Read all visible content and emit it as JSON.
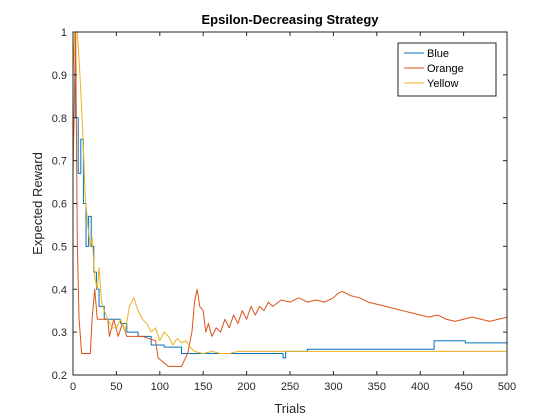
{
  "chart_data": {
    "type": "line",
    "title": "Epsilon-Decreasing Strategy",
    "xlabel": "Trials",
    "ylabel": "Expected Reward",
    "xlim": [
      0,
      500
    ],
    "ylim": [
      0.2,
      1
    ],
    "xticks": [
      0,
      50,
      100,
      150,
      200,
      250,
      300,
      350,
      400,
      450,
      500
    ],
    "yticks": [
      0.2,
      0.3,
      0.4,
      0.5,
      0.6,
      0.7,
      0.8,
      0.9,
      1
    ],
    "grid": false,
    "legend_position": "top-right",
    "series": [
      {
        "name": "Blue",
        "color": "#0072BD",
        "step": true,
        "points": [
          [
            0,
            1
          ],
          [
            3,
            0.8
          ],
          [
            6,
            0.67
          ],
          [
            9,
            0.75
          ],
          [
            12,
            0.6
          ],
          [
            15,
            0.5
          ],
          [
            18,
            0.57
          ],
          [
            21,
            0.5
          ],
          [
            24,
            0.44
          ],
          [
            27,
            0.4
          ],
          [
            30,
            0.36
          ],
          [
            36,
            0.33
          ],
          [
            55,
            0.32
          ],
          [
            62,
            0.3
          ],
          [
            75,
            0.29
          ],
          [
            90,
            0.27
          ],
          [
            105,
            0.265
          ],
          [
            125,
            0.25
          ],
          [
            240,
            0.25
          ],
          [
            242,
            0.24
          ],
          [
            245,
            0.255
          ],
          [
            270,
            0.26
          ],
          [
            415,
            0.26
          ],
          [
            416,
            0.28
          ],
          [
            450,
            0.28
          ],
          [
            452,
            0.275
          ],
          [
            500,
            0.275
          ]
        ]
      },
      {
        "name": "Orange",
        "color": "#D95319",
        "step": false,
        "points": [
          [
            0,
            0.67
          ],
          [
            3,
            1
          ],
          [
            5,
            0.5
          ],
          [
            7,
            0.33
          ],
          [
            10,
            0.25
          ],
          [
            14,
            0.25
          ],
          [
            20,
            0.25
          ],
          [
            22,
            0.33
          ],
          [
            25,
            0.4
          ],
          [
            28,
            0.33
          ],
          [
            32,
            0.33
          ],
          [
            40,
            0.33
          ],
          [
            42,
            0.29
          ],
          [
            47,
            0.33
          ],
          [
            52,
            0.29
          ],
          [
            57,
            0.32
          ],
          [
            62,
            0.29
          ],
          [
            70,
            0.29
          ],
          [
            80,
            0.29
          ],
          [
            95,
            0.28
          ],
          [
            98,
            0.24
          ],
          [
            110,
            0.22
          ],
          [
            125,
            0.22
          ],
          [
            132,
            0.25
          ],
          [
            137,
            0.3
          ],
          [
            140,
            0.37
          ],
          [
            143,
            0.4
          ],
          [
            146,
            0.36
          ],
          [
            150,
            0.35
          ],
          [
            153,
            0.3
          ],
          [
            156,
            0.32
          ],
          [
            160,
            0.29
          ],
          [
            165,
            0.31
          ],
          [
            170,
            0.3
          ],
          [
            175,
            0.33
          ],
          [
            180,
            0.31
          ],
          [
            185,
            0.34
          ],
          [
            190,
            0.32
          ],
          [
            195,
            0.35
          ],
          [
            200,
            0.33
          ],
          [
            205,
            0.36
          ],
          [
            210,
            0.34
          ],
          [
            215,
            0.36
          ],
          [
            220,
            0.35
          ],
          [
            225,
            0.37
          ],
          [
            230,
            0.36
          ],
          [
            240,
            0.375
          ],
          [
            250,
            0.37
          ],
          [
            260,
            0.38
          ],
          [
            270,
            0.37
          ],
          [
            280,
            0.375
          ],
          [
            290,
            0.37
          ],
          [
            300,
            0.38
          ],
          [
            305,
            0.39
          ],
          [
            310,
            0.395
          ],
          [
            320,
            0.385
          ],
          [
            330,
            0.38
          ],
          [
            340,
            0.37
          ],
          [
            350,
            0.365
          ],
          [
            360,
            0.36
          ],
          [
            370,
            0.355
          ],
          [
            380,
            0.35
          ],
          [
            390,
            0.345
          ],
          [
            400,
            0.34
          ],
          [
            410,
            0.335
          ],
          [
            420,
            0.34
          ],
          [
            430,
            0.33
          ],
          [
            440,
            0.325
          ],
          [
            450,
            0.33
          ],
          [
            460,
            0.335
          ],
          [
            470,
            0.33
          ],
          [
            480,
            0.325
          ],
          [
            490,
            0.33
          ],
          [
            500,
            0.335
          ]
        ]
      },
      {
        "name": "Yellow",
        "color": "#EDB120",
        "step": false,
        "points": [
          [
            0,
            0.9
          ],
          [
            2,
            1
          ],
          [
            5,
            1
          ],
          [
            8,
            0.9
          ],
          [
            11,
            0.78
          ],
          [
            14,
            0.62
          ],
          [
            17,
            0.55
          ],
          [
            20,
            0.5
          ],
          [
            22,
            0.52
          ],
          [
            25,
            0.43
          ],
          [
            28,
            0.4
          ],
          [
            30,
            0.45
          ],
          [
            33,
            0.37
          ],
          [
            36,
            0.35
          ],
          [
            40,
            0.33
          ],
          [
            45,
            0.31
          ],
          [
            50,
            0.31
          ],
          [
            55,
            0.33
          ],
          [
            60,
            0.3
          ],
          [
            65,
            0.36
          ],
          [
            70,
            0.38
          ],
          [
            75,
            0.35
          ],
          [
            80,
            0.33
          ],
          [
            85,
            0.32
          ],
          [
            90,
            0.3
          ],
          [
            95,
            0.31
          ],
          [
            100,
            0.28
          ],
          [
            105,
            0.3
          ],
          [
            110,
            0.29
          ],
          [
            115,
            0.27
          ],
          [
            120,
            0.285
          ],
          [
            125,
            0.275
          ],
          [
            130,
            0.28
          ],
          [
            135,
            0.265
          ],
          [
            140,
            0.255
          ],
          [
            150,
            0.25
          ],
          [
            160,
            0.255
          ],
          [
            170,
            0.25
          ],
          [
            180,
            0.25
          ],
          [
            190,
            0.255
          ],
          [
            200,
            0.255
          ],
          [
            220,
            0.255
          ],
          [
            240,
            0.255
          ],
          [
            260,
            0.255
          ],
          [
            280,
            0.255
          ],
          [
            300,
            0.255
          ],
          [
            320,
            0.255
          ],
          [
            340,
            0.255
          ],
          [
            360,
            0.255
          ],
          [
            380,
            0.255
          ],
          [
            400,
            0.255
          ],
          [
            420,
            0.255
          ],
          [
            440,
            0.255
          ],
          [
            460,
            0.255
          ],
          [
            480,
            0.255
          ],
          [
            500,
            0.255
          ]
        ]
      }
    ]
  }
}
